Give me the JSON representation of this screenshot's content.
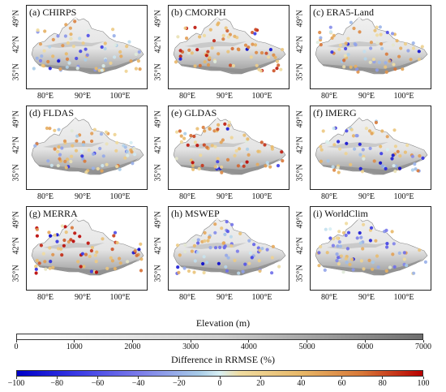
{
  "panels": [
    {
      "label": "(a) CHIRPS",
      "seed": 11,
      "bias": 0.15
    },
    {
      "label": "(b) CMORPH",
      "seed": 23,
      "bias": 0.55
    },
    {
      "label": "(c) ERA5-Land",
      "seed": 37,
      "bias": 0.2
    },
    {
      "label": "(d) FLDAS",
      "seed": 41,
      "bias": 0.2
    },
    {
      "label": "(e) GLDAS",
      "seed": 53,
      "bias": 0.45
    },
    {
      "label": "(f) IMERG",
      "seed": 67,
      "bias": 0.2
    },
    {
      "label": "(g) MERRA",
      "seed": 71,
      "bias": 0.6
    },
    {
      "label": "(h) MSWEP",
      "seed": 83,
      "bias": -0.05
    },
    {
      "label": "(i) WorldClim",
      "seed": 97,
      "bias": 0.0
    }
  ],
  "lat_ticks": [
    "49°N",
    "42°N",
    "35°N"
  ],
  "lon_ticks": [
    "80°E",
    "90°E",
    "100°E"
  ],
  "elevation_colorbar": {
    "title": "Elevation (m)",
    "min": 0,
    "max": 7000,
    "ticks": [
      "0",
      "1000",
      "2000",
      "3000",
      "4000",
      "5000",
      "6000",
      "7000"
    ],
    "colors": [
      "#ffffff",
      "#cfcfcf",
      "#6e6e6e"
    ]
  },
  "difference_colorbar": {
    "title": "Difference in RRMSE (%)",
    "min": -100,
    "max": 100,
    "ticks": [
      "−100",
      "−80",
      "−60",
      "−40",
      "−20",
      "0",
      "20",
      "40",
      "60",
      "80",
      "100"
    ],
    "colors": [
      "#0000c8",
      "#7b7bea",
      "#d8f0f4",
      "#e8b868",
      "#b80000"
    ]
  }
}
